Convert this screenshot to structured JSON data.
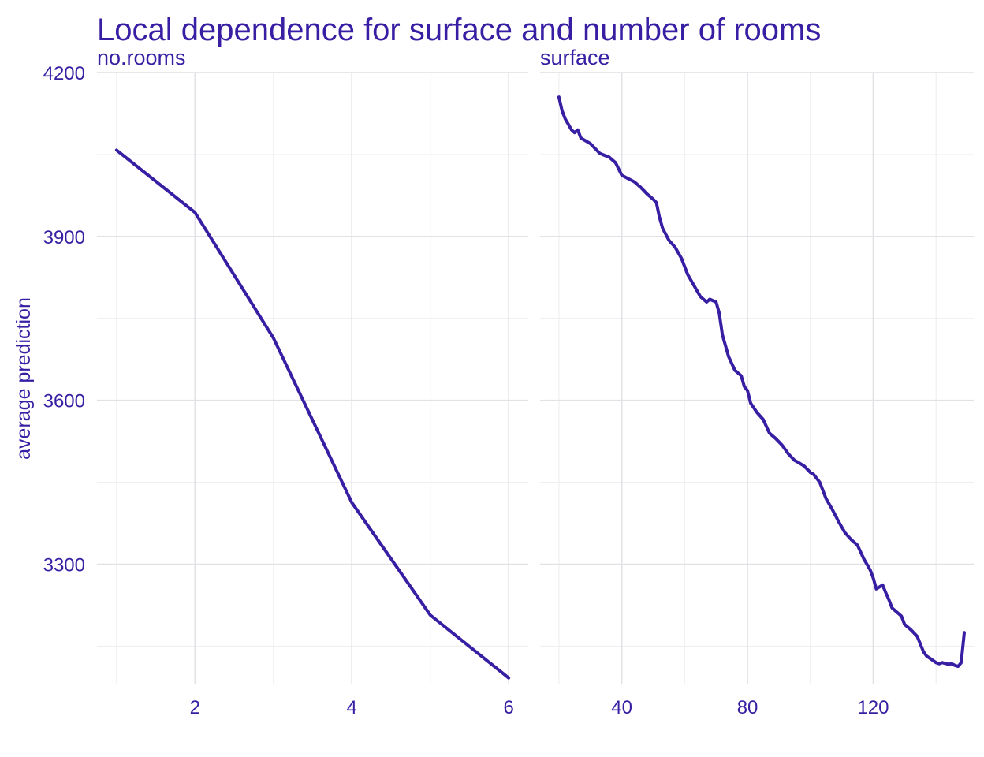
{
  "chart_data": {
    "type": "line",
    "title": "Local dependence for surface and number of rooms",
    "ylabel": "average prediction",
    "ylim": [
      3080,
      4200
    ],
    "y_ticks": [
      3300,
      3600,
      3900,
      4200
    ],
    "y_tick_labels": [
      "3300",
      "3600",
      "3900",
      "4200"
    ],
    "y_minor_ticks": [
      3150,
      3450,
      3750,
      4050
    ],
    "grid": true,
    "legend": "none",
    "color": "#371ea3",
    "panels": [
      {
        "name": "no.rooms",
        "xlim": [
          0.75,
          6.25
        ],
        "x_ticks": [
          2,
          4,
          6
        ],
        "x_tick_labels": [
          "2",
          "4",
          "6"
        ],
        "x_minor_ticks": [
          1,
          3,
          5
        ],
        "series": [
          {
            "x": [
              1,
              2,
              3,
              4,
              5,
              6
            ],
            "y": [
              4058,
              3944,
              3714,
              3413,
              3207,
              3092
            ]
          }
        ]
      },
      {
        "name": "surface",
        "xlim": [
          14,
          152
        ],
        "x_ticks": [
          40,
          80,
          120
        ],
        "x_tick_labels": [
          "40",
          "80",
          "120"
        ],
        "x_minor_ticks": [
          20,
          60,
          100,
          140
        ],
        "series": [
          {
            "x": [
              20,
              21,
              22,
              23,
              24,
              25,
              26,
              27,
              30,
              33,
              36,
              38,
              40,
              44,
              46,
              48,
              50,
              51,
              52,
              53,
              55,
              57,
              59,
              61,
              63,
              65,
              67,
              68,
              70,
              71,
              72,
              74,
              76,
              78,
              79,
              80,
              81,
              83,
              85,
              87,
              89,
              91,
              93,
              95,
              96,
              98,
              100,
              101,
              103,
              105,
              107,
              109,
              111,
              113,
              115,
              117,
              119,
              120,
              121,
              123,
              124,
              125,
              126,
              127,
              129,
              130,
              132,
              134,
              136,
              137,
              138,
              140,
              141,
              142,
              144,
              145,
              146,
              147,
              148,
              149
            ],
            "y": [
              4155,
              4130,
              4115,
              4105,
              4095,
              4090,
              4095,
              4080,
              4070,
              4052,
              4045,
              4035,
              4012,
              4000,
              3990,
              3978,
              3968,
              3962,
              3935,
              3915,
              3893,
              3880,
              3860,
              3830,
              3810,
              3790,
              3780,
              3785,
              3780,
              3760,
              3720,
              3680,
              3655,
              3645,
              3625,
              3618,
              3595,
              3578,
              3565,
              3540,
              3530,
              3518,
              3502,
              3490,
              3487,
              3480,
              3468,
              3465,
              3450,
              3420,
              3400,
              3378,
              3358,
              3345,
              3335,
              3310,
              3290,
              3275,
              3255,
              3262,
              3248,
              3235,
              3220,
              3215,
              3205,
              3190,
              3180,
              3168,
              3140,
              3132,
              3128,
              3120,
              3118,
              3120,
              3117,
              3118,
              3115,
              3113,
              3120,
              3175
            ]
          }
        ]
      }
    ]
  }
}
